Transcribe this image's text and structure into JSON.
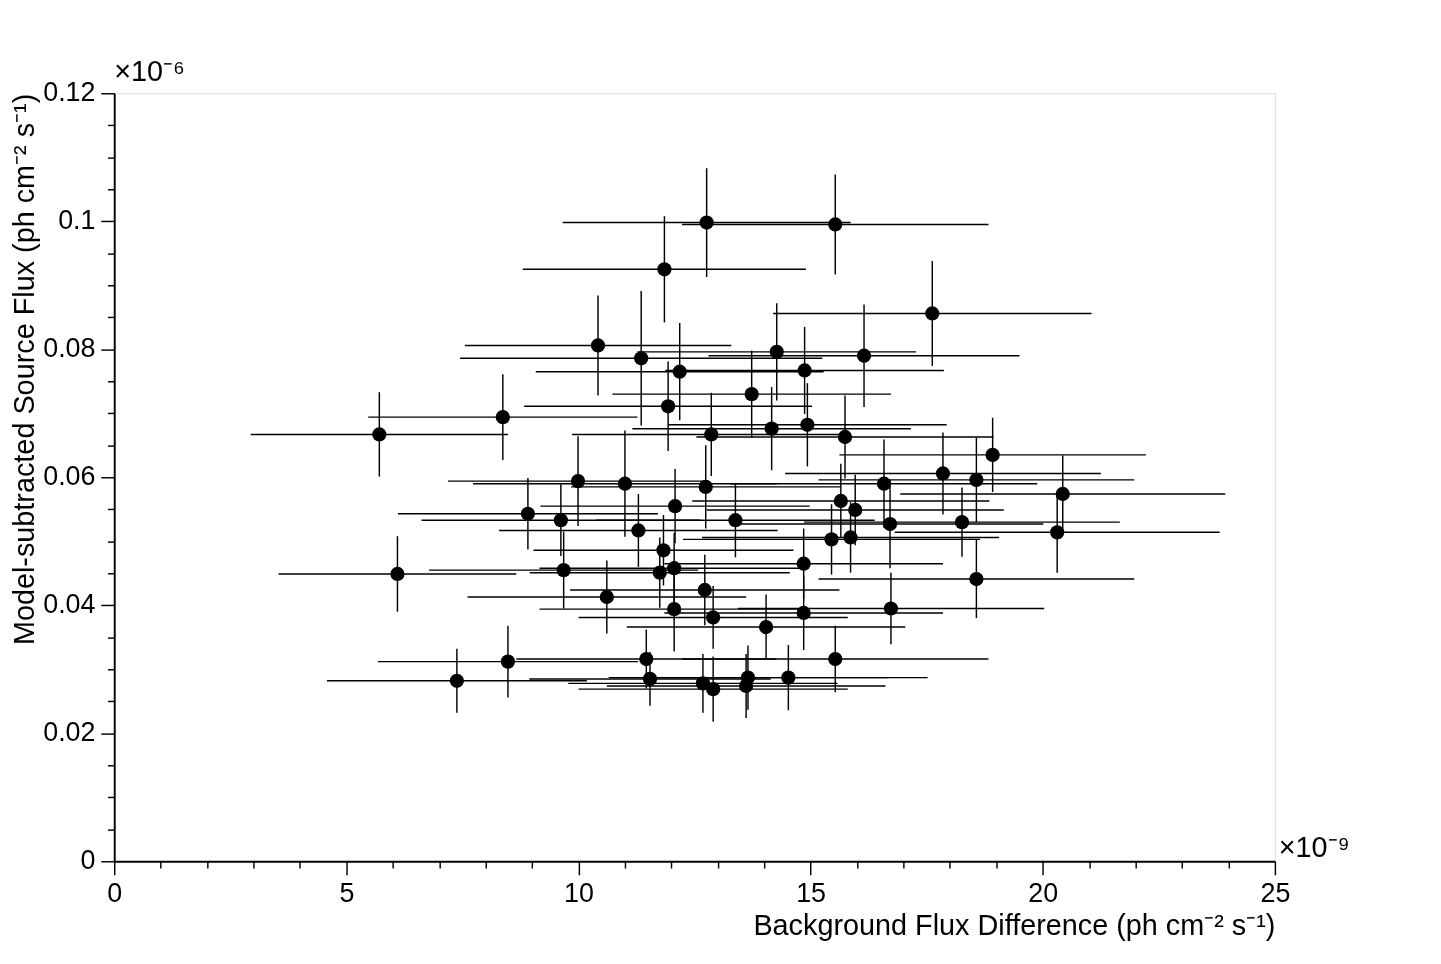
{
  "chart_data": {
    "type": "scatter",
    "xlabel": "Background Flux Difference (ph cm⁻² s⁻¹)",
    "ylabel": "Model-subtracted Source Flux (ph cm⁻² s⁻¹)",
    "annotations": [
      "×10⁻⁶",
      "×10⁻⁹"
    ],
    "xlim": [
      0,
      25
    ],
    "ylim": [
      0,
      0.12
    ],
    "xticks": [
      0,
      {
        "value": 1,
        "label": null
      },
      {
        "value": 2,
        "label": null
      },
      {
        "value": 3,
        "label": null
      },
      {
        "value": 4,
        "label": null
      },
      5,
      {
        "value": 6,
        "label": null
      },
      {
        "value": 7,
        "label": null
      },
      {
        "value": 8,
        "label": null
      },
      {
        "value": 9,
        "label": null
      },
      10,
      {
        "value": 11,
        "label": null
      },
      {
        "value": 12,
        "label": null
      },
      {
        "value": 13,
        "label": null
      },
      {
        "value": 14,
        "label": null
      },
      15,
      {
        "value": 16,
        "label": null
      },
      {
        "value": 17,
        "label": null
      },
      {
        "value": 18,
        "label": null
      },
      {
        "value": 19,
        "label": null
      },
      20,
      {
        "value": 21,
        "label": null
      },
      {
        "value": 22,
        "label": null
      },
      {
        "value": 23,
        "label": null
      },
      {
        "value": 24,
        "label": null
      },
      25
    ],
    "yticks": [
      0,
      {
        "value": 0.005,
        "label": null
      },
      {
        "value": 0.01,
        "label": null
      },
      {
        "value": 0.015,
        "label": null
      },
      0.02,
      {
        "value": 0.025,
        "label": null
      },
      {
        "value": 0.03,
        "label": null
      },
      {
        "value": 0.035,
        "label": null
      },
      0.04,
      {
        "value": 0.045,
        "label": null
      },
      {
        "value": 0.05,
        "label": null
      },
      {
        "value": 0.055,
        "label": null
      },
      0.06,
      {
        "value": 0.065,
        "label": null
      },
      {
        "value": 0.07,
        "label": null
      },
      {
        "value": 0.075,
        "label": null
      },
      0.08,
      {
        "value": 0.085,
        "label": null
      },
      {
        "value": 0.09,
        "label": null
      },
      {
        "value": 0.095,
        "label": null
      },
      0.1,
      {
        "value": 0.105,
        "label": null
      },
      {
        "value": 0.11,
        "label": null
      },
      {
        "value": 0.115,
        "label": null
      },
      0.12
    ],
    "grid": false,
    "marker": "circle",
    "series": [
      {
        "color": "#000000",
        "x": [
          5.71,
          6.1,
          8.37,
          7.38,
          8.48,
          8.91,
          9.62,
          9.68,
          9.99,
          10.42,
          10.61,
          11.0,
          11.35,
          11.29,
          11.46,
          11.54,
          11.83,
          11.75,
          11.93,
          12.06,
          12.08,
          12.06,
          12.18,
          11.85,
          12.76,
          12.72,
          12.74,
          12.86,
          12.9,
          12.68,
          12.9,
          13.38,
          13.73,
          13.65,
          13.61,
          14.04,
          14.16,
          14.27,
          14.52,
          14.87,
          14.85,
          14.85,
          14.93,
          15.53,
          15.53,
          15.45,
          15.65,
          15.74,
          15.86,
          15.96,
          16.15,
          16.58,
          16.71,
          16.73,
          17.62,
          17.85,
          18.26,
          18.57,
          18.57,
          18.92,
          20.31,
          20.43
        ],
        "values": [
          0.0667,
          0.0449,
          0.0694,
          0.0282,
          0.0312,
          0.0543,
          0.0533,
          0.0455,
          0.0594,
          0.0806,
          0.0413,
          0.059,
          0.0786,
          0.0517,
          0.0316,
          0.0285,
          0.0486,
          0.0451,
          0.0711,
          0.0458,
          0.0555,
          0.0394,
          0.0765,
          0.0925,
          0.0998,
          0.0424,
          0.0585,
          0.0667,
          0.0381,
          0.0278,
          0.0269,
          0.0533,
          0.073,
          0.0287,
          0.0274,
          0.0366,
          0.0676,
          0.0796,
          0.0287,
          0.0767,
          0.0465,
          0.0388,
          0.0682,
          0.0995,
          0.0316,
          0.0503,
          0.0563,
          0.0663,
          0.0506,
          0.0549,
          0.079,
          0.059,
          0.0527,
          0.0395,
          0.0856,
          0.0606,
          0.053,
          0.0596,
          0.0441,
          0.0635,
          0.0514,
          0.0574
        ],
        "errors": [
          0.0066,
          0.0059,
          0.0067,
          0.005,
          0.0056,
          0.0056,
          0.0056,
          0.006,
          0.007,
          0.0078,
          0.0057,
          0.0083,
          0.0105,
          0.0057,
          0.0046,
          0.0042,
          0.0055,
          0.0055,
          0.007,
          0.0055,
          0.0058,
          0.0066,
          0.0076,
          0.0083,
          0.0085,
          0.0055,
          0.0065,
          0.0065,
          0.0049,
          0.0046,
          0.0051,
          0.0058,
          0.0068,
          0.005,
          0.005,
          0.0051,
          0.0065,
          0.0076,
          0.0051,
          0.0068,
          0.0055,
          0.0058,
          0.0065,
          0.0078,
          0.0052,
          0.0055,
          0.0058,
          0.0065,
          0.0055,
          0.0055,
          0.008,
          0.0069,
          0.0069,
          0.0056,
          0.0082,
          0.0064,
          0.0054,
          0.0066,
          0.0061,
          0.0058,
          0.0063,
          0.006
        ],
        "xerrors": [
          2.77,
          2.56,
          2.9,
          2.8,
          2.8,
          2.8,
          3.0,
          2.9,
          2.8,
          2.87,
          3.0,
          3.27,
          3.9,
          3.0,
          2.8,
          2.6,
          2.8,
          2.8,
          3.1,
          2.9,
          2.9,
          2.9,
          3.1,
          3.05,
          3.1,
          2.9,
          2.9,
          3.0,
          2.9,
          2.9,
          2.9,
          3.0,
          3.0,
          3.0,
          3.0,
          3.0,
          3.0,
          3.0,
          3.0,
          3.0,
          3.0,
          3.0,
          3.0,
          3.3,
          3.3,
          3.2,
          3.2,
          3.2,
          3.2,
          3.2,
          3.35,
          3.3,
          3.3,
          3.3,
          3.43,
          3.4,
          3.4,
          3.4,
          3.4,
          3.3,
          3.5,
          3.5
        ]
      }
    ]
  }
}
